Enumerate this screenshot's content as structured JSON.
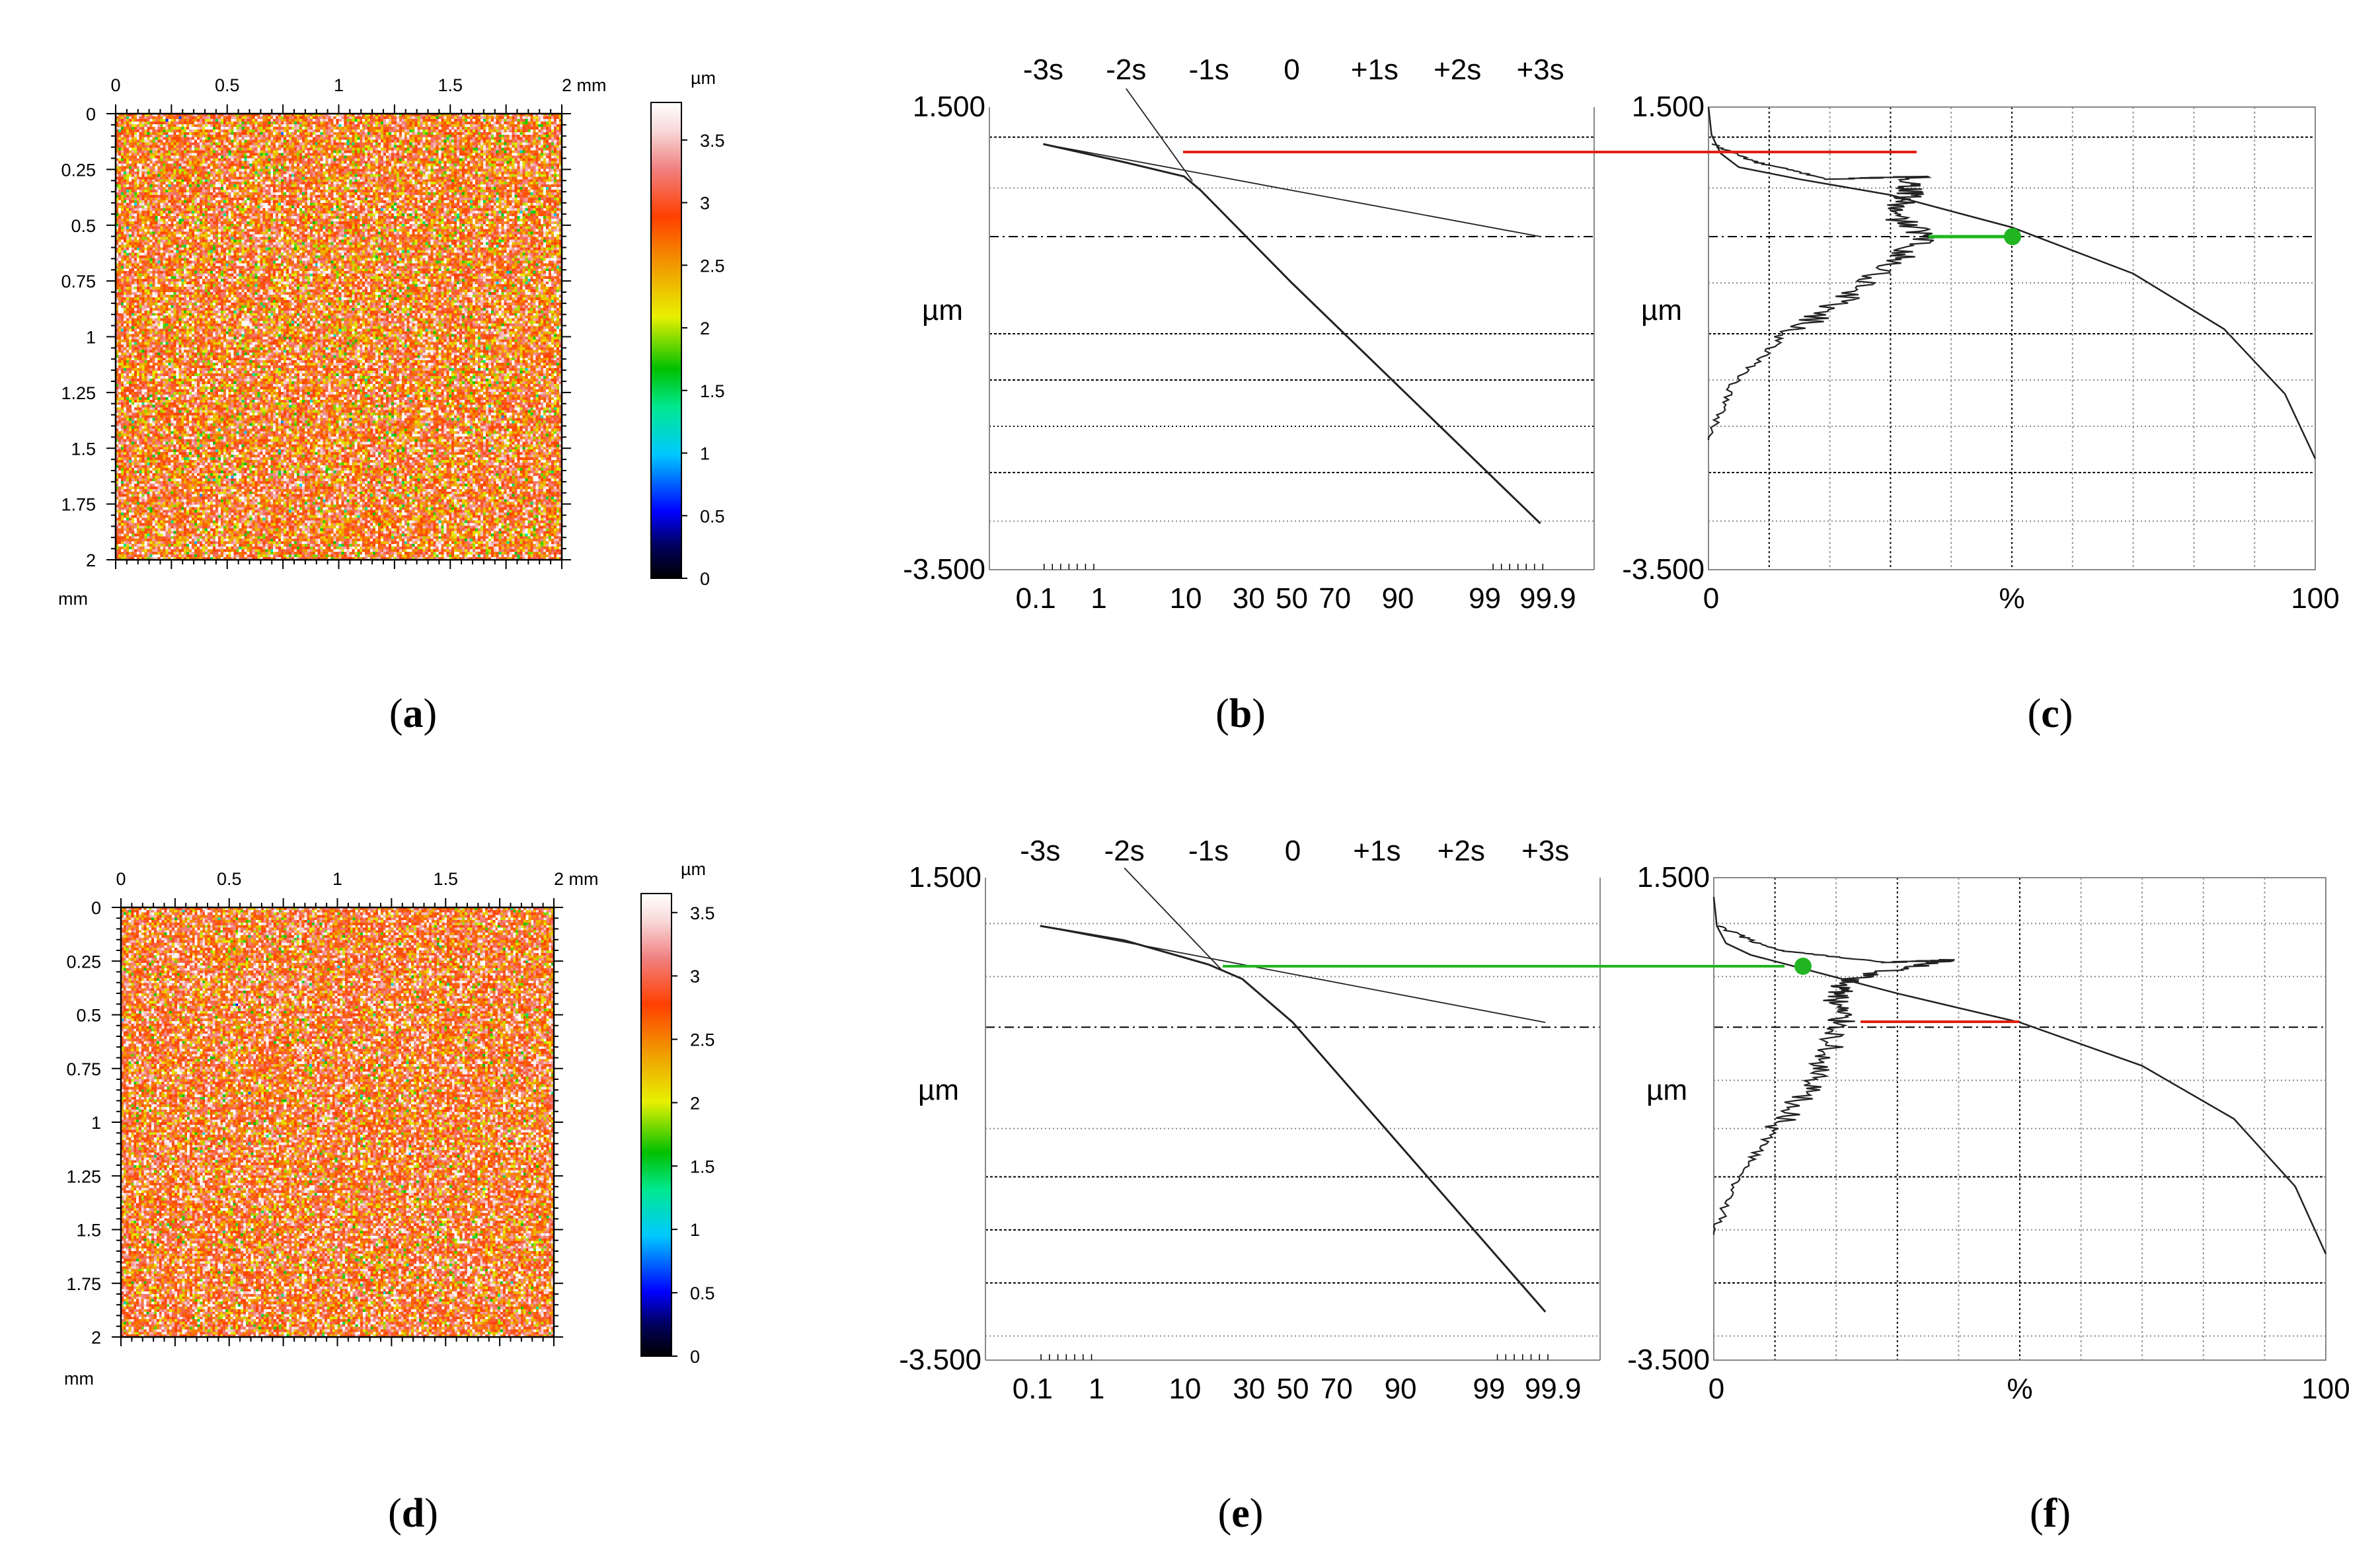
{
  "figure": {
    "captions": [
      {
        "open": "(",
        "letter": "a",
        "close": ")"
      },
      {
        "open": "(",
        "letter": "b",
        "close": ")"
      },
      {
        "open": "(",
        "letter": "c",
        "close": ")"
      },
      {
        "open": "(",
        "letter": "d",
        "close": ")"
      },
      {
        "open": "(",
        "letter": "e",
        "close": ")"
      },
      {
        "open": "(",
        "letter": "f",
        "close": ")"
      }
    ]
  },
  "chart_data": [
    {
      "id": "a",
      "type": "heatmap",
      "title": "",
      "x_unit": "mm",
      "x_ticks": [
        "0",
        "0.5",
        "1",
        "1.5",
        "2 mm"
      ],
      "y_unit": "mm",
      "y_ticks": [
        "0",
        "0.25",
        "0.5",
        "0.75",
        "1",
        "1.25",
        "1.5",
        "1.75",
        "2"
      ],
      "xlim": [
        0,
        2
      ],
      "ylim": [
        0,
        2
      ],
      "colorbar": {
        "unit": "µm",
        "ticks": [
          "3.5",
          "3",
          "2.5",
          "2",
          "1.5",
          "1",
          "0.5",
          "0"
        ],
        "range": [
          0,
          3.8
        ]
      },
      "value_distribution": {
        "mean_um": 2.9,
        "std_um": 0.55
      }
    },
    {
      "id": "b",
      "type": "line",
      "title": "",
      "top_ticks": [
        "-3s",
        "-2s",
        "-1s",
        "0",
        "+1s",
        "+2s",
        "+3s"
      ],
      "bottom_ticks": [
        "0.1",
        "1",
        "10",
        "30",
        "50",
        "70",
        "90",
        "99",
        "99.9"
      ],
      "ylabel": "µm",
      "ylim_labels": [
        "1.500",
        "-3.500"
      ],
      "ylim": [
        -3.5,
        1.5
      ],
      "series": [
        {
          "name": "material ratio probability curve",
          "x_sigma": [
            -3.0,
            -2.0,
            -1.3,
            -1.1,
            0.0,
            3.0
          ],
          "y": [
            1.1,
            0.9,
            0.75,
            0.6,
            -0.4,
            -3.0
          ]
        },
        {
          "name": "plateau regression line",
          "x_sigma": [
            -3.0,
            3.0
          ],
          "y": [
            1.1,
            0.1
          ]
        },
        {
          "name": "valley regression line",
          "x_sigma": [
            -2.0,
            -1.2
          ],
          "y": [
            1.7,
            0.7
          ]
        }
      ],
      "marker": {
        "name": "intersection",
        "y": 0.75,
        "color": "#e02010"
      }
    },
    {
      "id": "c",
      "type": "line",
      "title": "",
      "xlabel": "%",
      "x_ticks": [
        "0",
        "100"
      ],
      "ylabel": "µm",
      "ylim_labels": [
        "1.500",
        "-3.500"
      ],
      "ylim": [
        -3.5,
        1.5
      ],
      "xlim": [
        0,
        100
      ],
      "series": [
        {
          "name": "Abbott-Firestone curve",
          "x": [
            0,
            0.5,
            2,
            5,
            15,
            30,
            50,
            70,
            85,
            95,
            100
          ],
          "y": [
            1.5,
            1.2,
            1.0,
            0.85,
            0.72,
            0.55,
            0.2,
            -0.3,
            -0.9,
            -1.6,
            -2.3
          ]
        },
        {
          "name": "height distribution",
          "x": [
            0.5,
            8,
            20,
            34,
            33,
            30,
            36,
            30,
            22,
            12,
            4,
            0
          ],
          "y": [
            1.1,
            0.9,
            0.72,
            0.75,
            0.55,
            0.35,
            0.1,
            -0.2,
            -0.6,
            -1.0,
            -1.5,
            -2.1
          ]
        }
      ],
      "marker": {
        "name": "mean line",
        "y": 0.2,
        "x": 50,
        "color": "#22b522"
      }
    },
    {
      "id": "d",
      "type": "heatmap",
      "title": "",
      "x_unit": "mm",
      "x_ticks": [
        "0",
        "0.5",
        "1",
        "1.5",
        "2 mm"
      ],
      "y_unit": "mm",
      "y_ticks": [
        "0",
        "0.25",
        "0.5",
        "0.75",
        "1",
        "1.25",
        "1.5",
        "1.75",
        "2"
      ],
      "xlim": [
        0,
        2
      ],
      "ylim": [
        0,
        2
      ],
      "colorbar": {
        "unit": "µm",
        "ticks": [
          "3.5",
          "3",
          "2.5",
          "2",
          "1.5",
          "1",
          "0.5",
          "0"
        ],
        "range": [
          0,
          3.65
        ]
      },
      "value_distribution": {
        "mean_um": 2.85,
        "std_um": 0.5
      }
    },
    {
      "id": "e",
      "type": "line",
      "title": "",
      "top_ticks": [
        "-3s",
        "-2s",
        "-1s",
        "0",
        "+1s",
        "+2s",
        "+3s"
      ],
      "bottom_ticks": [
        "0.1",
        "1",
        "10",
        "30",
        "50",
        "70",
        "90",
        "99",
        "99.9"
      ],
      "ylabel": "µm",
      "ylim_labels": [
        "1.500",
        "-3.500"
      ],
      "ylim": [
        -3.5,
        1.5
      ],
      "series": [
        {
          "name": "material ratio probability curve",
          "x_sigma": [
            -3.0,
            -2.0,
            -1.0,
            -0.6,
            0.0,
            3.0
          ],
          "y": [
            1.0,
            0.85,
            0.6,
            0.45,
            0.0,
            -3.0
          ]
        },
        {
          "name": "plateau regression line",
          "x_sigma": [
            -3.0,
            3.0
          ],
          "y": [
            1.0,
            0.0
          ]
        },
        {
          "name": "valley regression line",
          "x_sigma": [
            -2.0,
            -0.85
          ],
          "y": [
            1.6,
            0.55
          ]
        }
      ],
      "marker": {
        "name": "intersection",
        "y": 0.55,
        "color": "#22b522"
      }
    },
    {
      "id": "f",
      "type": "line",
      "title": "",
      "xlabel": "%",
      "x_ticks": [
        "0",
        "100"
      ],
      "ylabel": "µm",
      "ylim_labels": [
        "1.500",
        "-3.500"
      ],
      "ylim": [
        -3.5,
        1.5
      ],
      "xlim": [
        0,
        100
      ],
      "series": [
        {
          "name": "Abbott-Firestone curve",
          "x": [
            0,
            0.5,
            2,
            6,
            15,
            30,
            50,
            70,
            85,
            95,
            100
          ],
          "y": [
            1.3,
            1.0,
            0.82,
            0.7,
            0.55,
            0.3,
            0.0,
            -0.45,
            -1.0,
            -1.7,
            -2.4
          ]
        },
        {
          "name": "height distribution",
          "x": [
            0.5,
            10,
            28,
            38,
            22,
            20,
            21,
            18,
            15,
            10,
            4,
            0
          ],
          "y": [
            1.0,
            0.75,
            0.62,
            0.65,
            0.45,
            0.25,
            0.0,
            -0.35,
            -0.7,
            -1.1,
            -1.6,
            -2.2
          ]
        }
      ],
      "marker_green": {
        "name": "peak marker",
        "y": 0.55,
        "x": 14,
        "color": "#22b522"
      },
      "marker_red": {
        "name": "mean line",
        "y": 0.0,
        "x": 50,
        "color": "#e02010"
      }
    }
  ]
}
